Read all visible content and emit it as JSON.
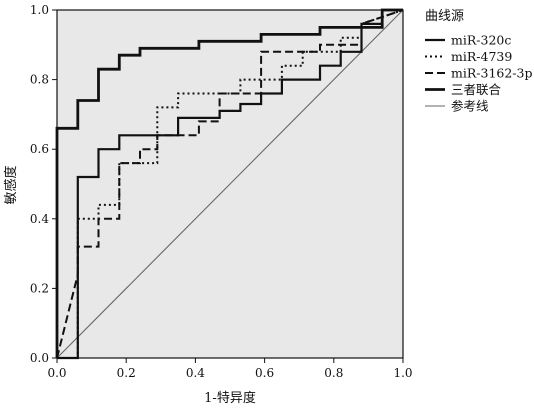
{
  "chart_data": {
    "type": "line",
    "title": "",
    "xlabel": "1-特异度",
    "ylabel": "敏感度",
    "xlim": [
      0,
      1
    ],
    "ylim": [
      0,
      1
    ],
    "xticks": [
      "0.0",
      "0.2",
      "0.4",
      "0.6",
      "0.8",
      "1.0"
    ],
    "yticks": [
      "0.0",
      "0.2",
      "0.4",
      "0.6",
      "0.8",
      "1.0"
    ],
    "grid": false,
    "plot_background": "#e8e8e8",
    "legend": {
      "title": "曲线源",
      "position": "right"
    },
    "series": [
      {
        "name": "miR-320c",
        "style": "solid-thin",
        "color": "#111111",
        "x": [
          0,
          0.06,
          0.06,
          0.12,
          0.12,
          0.18,
          0.18,
          0.35,
          0.35,
          0.47,
          0.47,
          0.53,
          0.53,
          0.59,
          0.59,
          0.65,
          0.65,
          0.76,
          0.76,
          0.82,
          0.82,
          0.88,
          0.88,
          0.94,
          0.94,
          1.0
        ],
        "y": [
          0,
          0,
          0.52,
          0.52,
          0.6,
          0.6,
          0.64,
          0.64,
          0.69,
          0.69,
          0.71,
          0.71,
          0.73,
          0.73,
          0.76,
          0.76,
          0.8,
          0.8,
          0.84,
          0.84,
          0.88,
          0.88,
          0.96,
          0.96,
          1.0,
          1.0
        ]
      },
      {
        "name": "miR-4739",
        "style": "dotted",
        "color": "#111111",
        "x": [
          0,
          0.06,
          0.06,
          0.12,
          0.12,
          0.18,
          0.18,
          0.29,
          0.29,
          0.35,
          0.35,
          0.53,
          0.53,
          0.65,
          0.65,
          0.71,
          0.71,
          0.82,
          0.82,
          0.88,
          0.88,
          1.0
        ],
        "y": [
          0,
          0,
          0.4,
          0.4,
          0.44,
          0.44,
          0.56,
          0.56,
          0.72,
          0.72,
          0.76,
          0.76,
          0.8,
          0.8,
          0.84,
          0.84,
          0.88,
          0.88,
          0.92,
          0.92,
          0.96,
          1.0
        ]
      },
      {
        "name": "miR-3162-3p",
        "style": "dashed",
        "color": "#111111",
        "x": [
          0,
          0.06,
          0.06,
          0.12,
          0.12,
          0.18,
          0.18,
          0.24,
          0.24,
          0.29,
          0.29,
          0.41,
          0.41,
          0.47,
          0.47,
          0.59,
          0.59,
          0.76,
          0.76,
          0.88,
          0.88,
          1.0
        ],
        "y": [
          0,
          0.24,
          0.32,
          0.32,
          0.4,
          0.4,
          0.56,
          0.56,
          0.6,
          0.6,
          0.64,
          0.64,
          0.68,
          0.68,
          0.76,
          0.76,
          0.88,
          0.88,
          0.9,
          0.9,
          0.96,
          1.0
        ]
      },
      {
        "name": "三者联合",
        "style": "solid-thick",
        "color": "#111111",
        "x": [
          0,
          0,
          0.06,
          0.06,
          0.12,
          0.12,
          0.18,
          0.18,
          0.24,
          0.24,
          0.41,
          0.41,
          0.59,
          0.59,
          0.76,
          0.76,
          0.94,
          0.94,
          1.0
        ],
        "y": [
          0,
          0.66,
          0.66,
          0.74,
          0.74,
          0.83,
          0.83,
          0.87,
          0.87,
          0.89,
          0.89,
          0.91,
          0.91,
          0.93,
          0.93,
          0.95,
          0.95,
          1.0,
          1.0
        ]
      },
      {
        "name": "参考线",
        "style": "reference",
        "color": "#666666",
        "x": [
          0,
          1
        ],
        "y": [
          0,
          1
        ]
      }
    ]
  }
}
